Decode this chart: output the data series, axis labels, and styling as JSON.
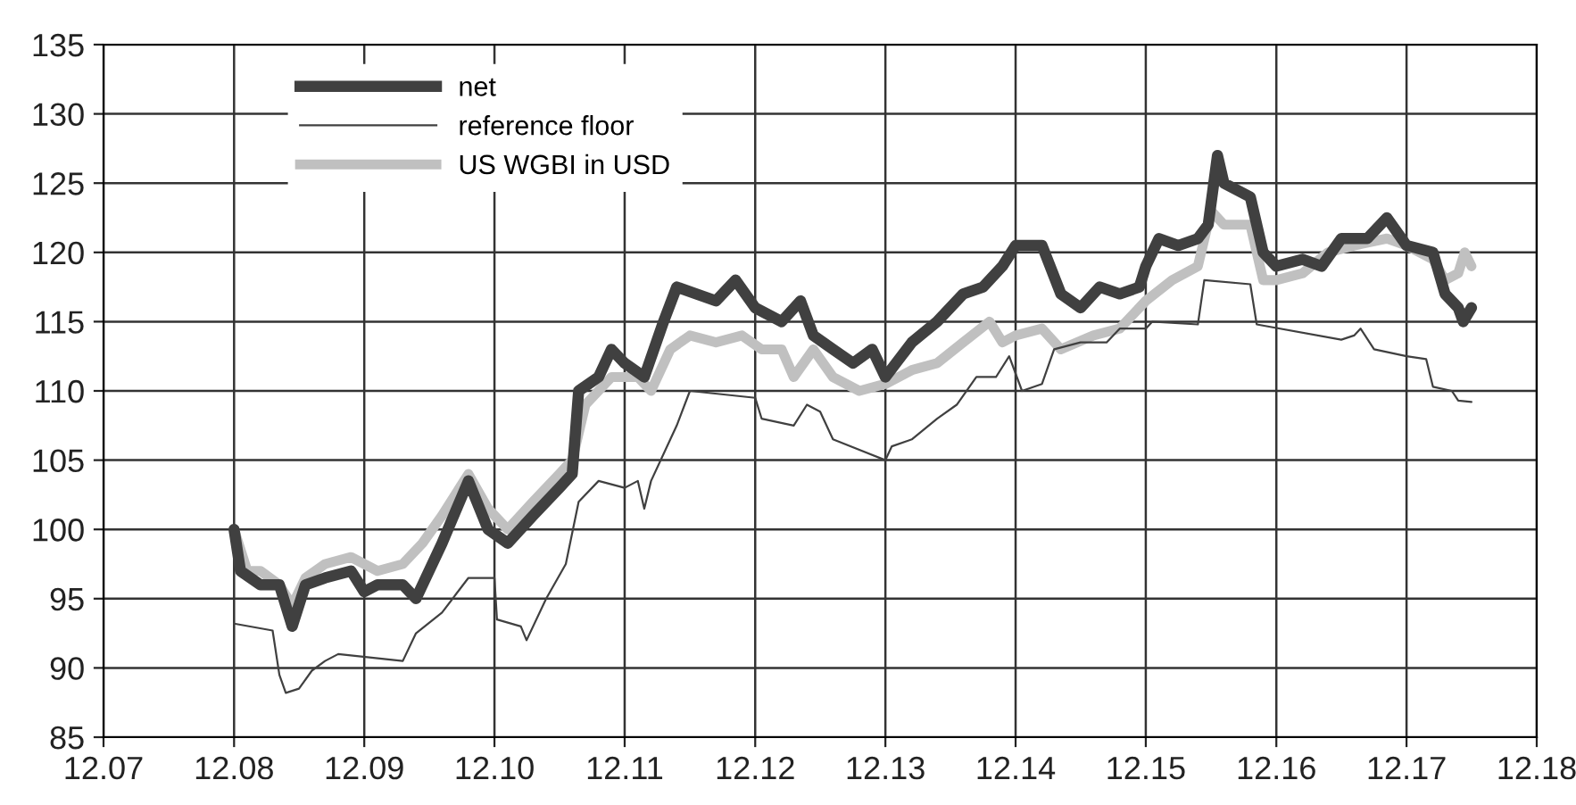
{
  "chart_data": {
    "type": "line",
    "xlim": [
      "2007-12-01",
      "2018-12-01"
    ],
    "xticks": [
      {
        "value": "2007-12-01",
        "label": "12.07"
      },
      {
        "value": "2008-12-01",
        "label": "12.08"
      },
      {
        "value": "2009-12-01",
        "label": "12.09"
      },
      {
        "value": "2010-12-01",
        "label": "12.10"
      },
      {
        "value": "2011-12-01",
        "label": "12.11"
      },
      {
        "value": "2012-12-01",
        "label": "12.12"
      },
      {
        "value": "2013-12-01",
        "label": "12.13"
      },
      {
        "value": "2014-12-01",
        "label": "12.14"
      },
      {
        "value": "2015-12-01",
        "label": "12.15"
      },
      {
        "value": "2016-12-01",
        "label": "12.16"
      },
      {
        "value": "2017-12-01",
        "label": "12.17"
      },
      {
        "value": "2018-12-01",
        "label": "12.18"
      }
    ],
    "ylim": [
      85,
      135
    ],
    "yticks": [
      85,
      90,
      95,
      100,
      105,
      110,
      115,
      120,
      125,
      130,
      135
    ],
    "grid": true,
    "legend": "top left",
    "line_style": "solid",
    "marker": "none",
    "series": [
      {
        "name": "net",
        "color": "#404040",
        "x": [
          "2008-12-01",
          "2008-12-19",
          "2009-02-13",
          "2009-04-07",
          "2009-05-13",
          "2009-06-19",
          "2009-08-13",
          "2009-10-25",
          "2009-12-01",
          "2010-01-07",
          "2010-03-19",
          "2010-04-25",
          "2010-07-07",
          "2010-09-19",
          "2010-11-13",
          "2011-01-07",
          "2011-03-19",
          "2011-06-01",
          "2011-07-07",
          "2011-07-25",
          "2011-09-19",
          "2011-10-25",
          "2011-12-01",
          "2012-01-25",
          "2012-03-19",
          "2012-04-25",
          "2012-06-19",
          "2012-08-13",
          "2012-10-07",
          "2012-12-01",
          "2013-02-13",
          "2013-04-07",
          "2013-05-13",
          "2013-07-07",
          "2013-09-01",
          "2013-10-25",
          "2013-12-01",
          "2014-02-13",
          "2014-04-25",
          "2014-07-07",
          "2014-09-01",
          "2014-10-25",
          "2014-12-01",
          "2015-02-13",
          "2015-04-07",
          "2015-06-01",
          "2015-07-25",
          "2015-09-19",
          "2015-11-13",
          "2015-12-01",
          "2016-01-07",
          "2016-03-01",
          "2016-04-25",
          "2016-05-24",
          "2016-06-19",
          "2016-07-07",
          "2016-09-19",
          "2016-10-25",
          "2016-12-01",
          "2017-02-13",
          "2017-04-07",
          "2017-06-01",
          "2017-08-13",
          "2017-10-07",
          "2017-12-01",
          "2018-02-13",
          "2018-03-19",
          "2018-04-25",
          "2018-05-09",
          "2018-06-01"
        ],
        "values": [
          100,
          97,
          96,
          96,
          93,
          96,
          96.5,
          97,
          95.5,
          96,
          96,
          95,
          99,
          103.5,
          100,
          99,
          101,
          103,
          104,
          110,
          111,
          113,
          112,
          111,
          115,
          117.5,
          117,
          116.5,
          118,
          116,
          115,
          116.5,
          114,
          113,
          112,
          113,
          111,
          113.5,
          115,
          117,
          117.5,
          119,
          120.5,
          120.5,
          117,
          116,
          117.5,
          117,
          117.5,
          119,
          121,
          120.5,
          121,
          122,
          127,
          125,
          124,
          120,
          119,
          119.5,
          119,
          121,
          121,
          122.5,
          120.5,
          120,
          117,
          116,
          115,
          116
        ]
      },
      {
        "name": "reference floor",
        "color": "#404040",
        "x": [
          "2008-12-01",
          "2009-03-19",
          "2009-04-07",
          "2009-04-25",
          "2009-06-01",
          "2009-07-07",
          "2009-08-13",
          "2009-09-19",
          "2010-03-19",
          "2010-04-25",
          "2010-07-07",
          "2010-09-19",
          "2010-12-01",
          "2010-12-08",
          "2011-02-13",
          "2011-03-01",
          "2011-04-25",
          "2011-06-19",
          "2011-07-25",
          "2011-09-19",
          "2011-12-01",
          "2012-01-07",
          "2012-01-25",
          "2012-02-13",
          "2012-04-25",
          "2012-06-01",
          "2012-12-01",
          "2012-12-19",
          "2013-03-19",
          "2013-04-25",
          "2013-06-01",
          "2013-07-07",
          "2013-12-01",
          "2013-12-19",
          "2014-02-13",
          "2014-04-25",
          "2014-06-19",
          "2014-08-13",
          "2014-10-07",
          "2014-11-13",
          "2014-12-19",
          "2015-02-13",
          "2015-03-19",
          "2015-06-01",
          "2015-08-13",
          "2015-09-19",
          "2015-12-01",
          "2015-12-19",
          "2016-04-25",
          "2016-05-13",
          "2016-09-19",
          "2016-10-07",
          "2017-06-01",
          "2017-07-07",
          "2017-07-25",
          "2017-09-01",
          "2017-12-01",
          "2018-01-25",
          "2018-02-13",
          "2018-04-07",
          "2018-04-25",
          "2018-06-01"
        ],
        "values": [
          93.2,
          92.7,
          89.5,
          88.2,
          88.5,
          89.8,
          90.5,
          91,
          90.5,
          92.5,
          94,
          96.5,
          96.5,
          93.5,
          93,
          92,
          95,
          97.5,
          102,
          103.5,
          103,
          103.5,
          101.5,
          103.5,
          107.5,
          110,
          109.5,
          108,
          107.5,
          109,
          108.5,
          106.5,
          105,
          106,
          106.5,
          108,
          109,
          111,
          111,
          112.5,
          110,
          110.5,
          113,
          113.5,
          113.5,
          114.5,
          114.5,
          115,
          114.8,
          118,
          117.7,
          114.8,
          113.7,
          114,
          114.5,
          113,
          112.5,
          112.3,
          110.3,
          110,
          109.3,
          109.2
        ]
      },
      {
        "name": "US WGBI in USD",
        "color": "#c0c0c0",
        "x": [
          "2008-12-01",
          "2009-01-07",
          "2009-02-13",
          "2009-04-07",
          "2009-05-13",
          "2009-06-19",
          "2009-08-13",
          "2009-10-25",
          "2010-01-07",
          "2010-03-19",
          "2010-05-13",
          "2010-07-07",
          "2010-09-19",
          "2010-11-13",
          "2011-01-07",
          "2011-03-19",
          "2011-06-01",
          "2011-07-07",
          "2011-08-13",
          "2011-10-25",
          "2012-01-07",
          "2012-02-13",
          "2012-04-07",
          "2012-06-01",
          "2012-08-13",
          "2012-10-25",
          "2012-12-19",
          "2013-02-13",
          "2013-03-19",
          "2013-05-13",
          "2013-07-07",
          "2013-09-19",
          "2013-12-01",
          "2014-02-13",
          "2014-04-25",
          "2014-07-07",
          "2014-09-19",
          "2014-10-25",
          "2014-12-01",
          "2015-02-13",
          "2015-04-07",
          "2015-07-07",
          "2015-09-19",
          "2015-12-01",
          "2016-02-13",
          "2016-04-25",
          "2016-06-01",
          "2016-07-07",
          "2016-09-19",
          "2016-10-25",
          "2016-12-01",
          "2017-02-13",
          "2017-04-25",
          "2017-07-07",
          "2017-10-07",
          "2017-12-01",
          "2018-02-13",
          "2018-03-19",
          "2018-04-25",
          "2018-05-13",
          "2018-06-01"
        ],
        "values": [
          100,
          97,
          97,
          96,
          94.5,
          96.5,
          97.5,
          98,
          97,
          97.5,
          99,
          101,
          104,
          101.5,
          100,
          102,
          104,
          105,
          109,
          111,
          111,
          110,
          113,
          114,
          113.5,
          114,
          113,
          113,
          111,
          113,
          111,
          110,
          110.5,
          111.5,
          112,
          113.5,
          115,
          113.5,
          114,
          114.5,
          113,
          114,
          114.5,
          116.5,
          118,
          119,
          123,
          122,
          122,
          118,
          118,
          118.5,
          120,
          120.5,
          121,
          120.5,
          119.5,
          118,
          118.5,
          120,
          119
        ]
      }
    ]
  }
}
